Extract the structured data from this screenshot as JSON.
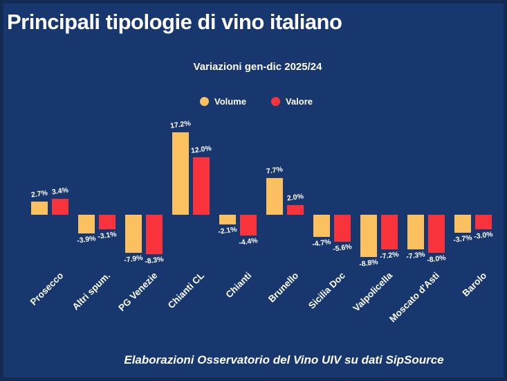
{
  "title": "Principali tipologie di vino italiano",
  "subtitle": "Variazioni gen-dic 2025/24",
  "footer": "Elaborazioni Osservatorio del Vino UIV su dati SipSource",
  "colors": {
    "background": "#17376E",
    "border": "#122B52",
    "volume": "#FBC161",
    "valore": "#F8333C",
    "text": "#FFFFFF"
  },
  "legend": [
    {
      "label": "Volume",
      "color": "#FBC161",
      "icon": "circle"
    },
    {
      "label": "Valore",
      "color": "#F8333C",
      "icon": "circle"
    }
  ],
  "chart_data": {
    "type": "bar",
    "title": "Principali tipologie di vino italiano",
    "subtitle": "Variazioni gen-dic 2025/24",
    "categories": [
      "Prosecco",
      "Altri spum.",
      "PG Venezie",
      "Chianti CL",
      "Chianti",
      "Brunello",
      "Sicilia Doc",
      "Valpolicella",
      "Moscato d'Asti",
      "Barolo"
    ],
    "series": [
      {
        "name": "Volume",
        "color": "#FBC161",
        "values": [
          2.7,
          -3.9,
          -7.9,
          17.2,
          -2.1,
          7.7,
          -4.7,
          -8.8,
          -7.3,
          -3.7
        ]
      },
      {
        "name": "Valore",
        "color": "#F8333C",
        "values": [
          3.4,
          -3.1,
          -8.3,
          12.0,
          -4.4,
          2.0,
          -5.6,
          -7.2,
          -8.0,
          -3.0
        ]
      }
    ],
    "value_suffix": "%",
    "ylim": [
      -10,
      19
    ],
    "grid": false,
    "axis_lines": false,
    "legend_position": "top-center",
    "xlabel": "",
    "ylabel": ""
  }
}
